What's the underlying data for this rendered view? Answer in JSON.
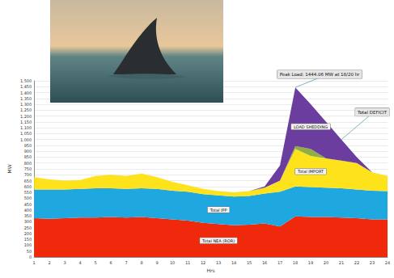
{
  "chart_data": {
    "type": "area",
    "stacked": true,
    "grid": true,
    "data_labels": false,
    "x_label": "Hrs",
    "y_label": "MW",
    "categories": [
      "1",
      "2",
      "3",
      "4",
      "5",
      "6",
      "7",
      "8",
      "9",
      "10",
      "11",
      "12",
      "13",
      "14",
      "15",
      "16",
      "17",
      "18",
      "19",
      "20",
      "21",
      "22",
      "23",
      "24"
    ],
    "series": [
      {
        "name": "Total NEA (ROR)",
        "color": "#f0280c",
        "values": [
          330,
          325,
          330,
          335,
          335,
          340,
          335,
          340,
          330,
          320,
          310,
          290,
          280,
          270,
          275,
          285,
          260,
          345,
          340,
          340,
          335,
          330,
          320,
          320
        ]
      },
      {
        "name": "Total IPP",
        "color": "#1fa8e0",
        "values": [
          245,
          250,
          245,
          245,
          250,
          245,
          245,
          245,
          250,
          245,
          245,
          245,
          245,
          245,
          245,
          255,
          295,
          255,
          255,
          250,
          250,
          245,
          245,
          240
        ]
      },
      {
        "name": "Total IMPORT",
        "color": "#fde21c",
        "values": [
          105,
          85,
          75,
          75,
          105,
          115,
          110,
          125,
          100,
          75,
          55,
          45,
          35,
          35,
          40,
          50,
          95,
          320,
          265,
          250,
          235,
          225,
          155,
          130
        ]
      },
      {
        "color": "#8fae45",
        "values": [
          0,
          0,
          0,
          0,
          0,
          0,
          0,
          0,
          0,
          0,
          0,
          0,
          0,
          0,
          0,
          0,
          0,
          25,
          60,
          0,
          0,
          0,
          0,
          0
        ]
      },
      {
        "name": "LOAD SHEDDING",
        "color": "#6a3d9e",
        "values": [
          0,
          0,
          0,
          0,
          0,
          0,
          0,
          0,
          0,
          0,
          0,
          0,
          0,
          0,
          0,
          10,
          130,
          499.06,
          380,
          310,
          180,
          50,
          0,
          0
        ]
      }
    ],
    "ylim": [
      0,
      1500
    ],
    "yticks": [
      0,
      50,
      100,
      150,
      200,
      250,
      300,
      350,
      400,
      450,
      500,
      550,
      600,
      650,
      700,
      750,
      800,
      850,
      900,
      950,
      1000,
      1050,
      1100,
      1150,
      1200,
      1250,
      1300,
      1350,
      1400,
      1450,
      1500
    ],
    "annotations": [
      {
        "text": "Peak Load: 1444.06 MW at 18/20 hr",
        "x": "18",
        "y": 1444.06
      },
      {
        "text": "Total DEFICIT",
        "x": "21",
        "y": 1000
      }
    ]
  }
}
